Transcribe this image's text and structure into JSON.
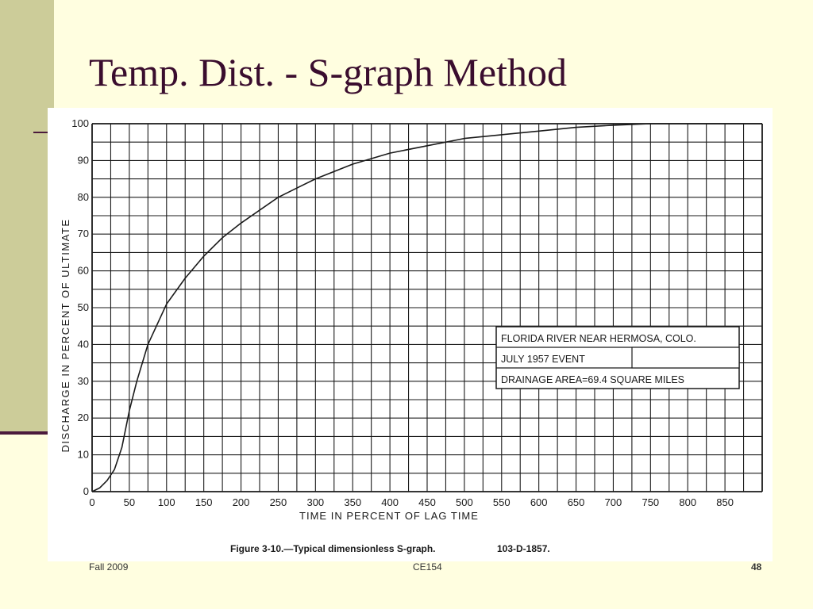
{
  "slide": {
    "title": "Temp. Dist. - S-graph Method",
    "footer_left": "Fall 2009",
    "footer_center": "CE154",
    "page_number": "48"
  },
  "colors": {
    "background": "#fffee0",
    "band": "#cccc99",
    "accent": "#4b1a3c",
    "title": "#3a0d2e",
    "ink": "#1a1a1a"
  },
  "chart_data": {
    "type": "line",
    "xlabel": "TIME IN PERCENT OF LAG TIME",
    "ylabel": "DISCHARGE IN PERCENT OF ULTIMATE",
    "caption": "Figure 3-10.—Typical dimensionless S-graph.",
    "caption_id": "103-D-1857.",
    "xlim": [
      0,
      900
    ],
    "ylim": [
      0,
      100
    ],
    "x_ticks": [
      "0",
      "50",
      "100",
      "150",
      "200",
      "250",
      "300",
      "350",
      "400",
      "450",
      "500",
      "550",
      "600",
      "650",
      "700",
      "750",
      "800",
      "850"
    ],
    "y_ticks": [
      "0",
      "10",
      "20",
      "30",
      "40",
      "50",
      "60",
      "70",
      "80",
      "90",
      "100"
    ],
    "grid": true,
    "legend_box": {
      "position": "right",
      "lines": [
        "FLORIDA RIVER NEAR HERMOSA, COLO.",
        "JULY 1957 EVENT",
        "DRAINAGE AREA=69.4 SQUARE MILES"
      ]
    },
    "series": [
      {
        "x": [
          0,
          10,
          20,
          30,
          40,
          50,
          60,
          75,
          100,
          125,
          150,
          175,
          200,
          250,
          300,
          350,
          400,
          450,
          500,
          550,
          600,
          650,
          700,
          750,
          800,
          850,
          900
        ],
        "y": [
          0,
          1,
          3,
          6,
          12,
          22,
          30,
          40,
          51,
          58,
          64,
          69,
          73,
          80,
          85,
          89,
          92,
          94,
          96,
          97,
          98,
          99,
          99.6,
          100,
          100,
          100,
          100
        ]
      }
    ]
  }
}
